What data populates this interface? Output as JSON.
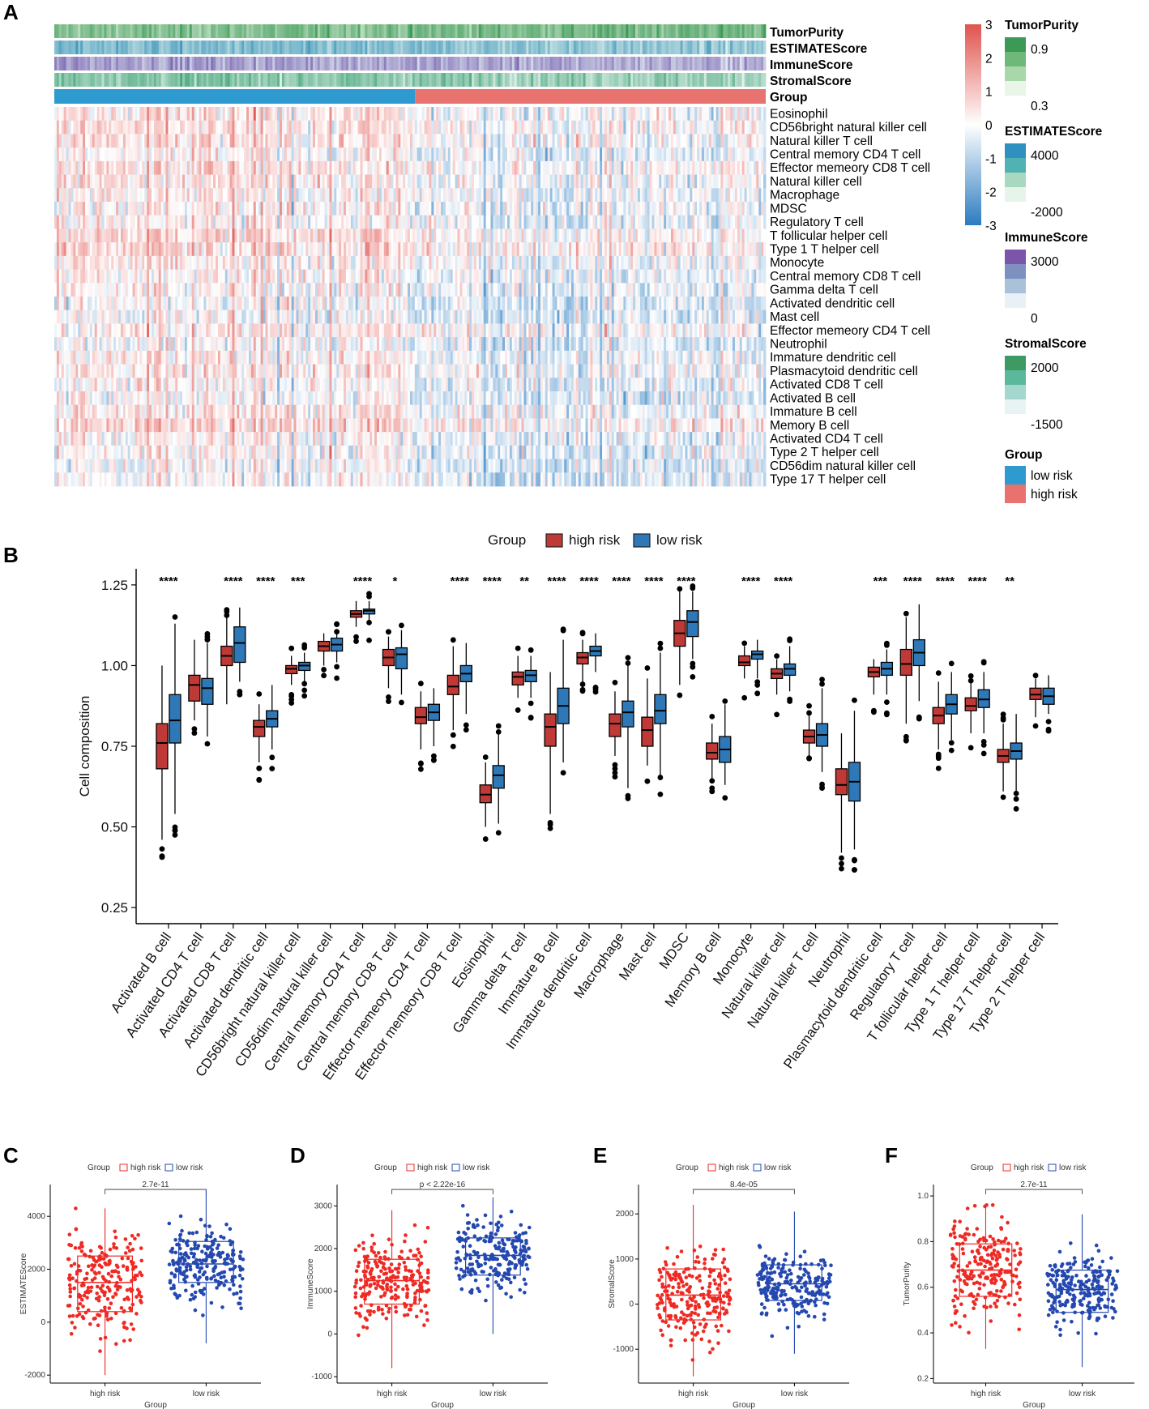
{
  "panels": {
    "A": "A",
    "B": "B",
    "C": "C",
    "D": "D",
    "E": "E",
    "F": "F"
  },
  "colors": {
    "high_risk": "#E8736E",
    "low_risk": "#2E9AD0",
    "box_high": "#BF3A36",
    "box_low": "#2F78B8",
    "dot_high": "#EE2A24",
    "dot_low": "#2448B0"
  },
  "chart_data": [
    {
      "type": "heatmap",
      "panel": "A",
      "title": "",
      "annotation_tracks": [
        "TumorPurity",
        "ESTIMATEScore",
        "ImmuneScore",
        "StromalScore",
        "Group"
      ],
      "rows": [
        "Eosinophil",
        "CD56bright natural killer cell",
        "Natural killer T cell",
        "Central memory CD4 T cell",
        "Effector memeory CD8 T cell",
        "Natural killer cell",
        "Macrophage",
        "MDSC",
        "Regulatory T cell",
        "T follicular helper cell",
        "Type 1 T helper cell",
        "Monocyte",
        "Central memory CD8 T cell",
        "Gamma delta T cell",
        "Activated dendritic cell",
        "Mast cell",
        "Effector memeory CD4 T cell",
        "Neutrophil",
        "Immature dendritic cell",
        "Plasmacytoid dendritic cell",
        "Activated CD8 T cell",
        "Activated B cell",
        "Immature  B cell",
        "Memory B cell",
        "Activated CD4 T cell",
        "Type 2 T helper cell",
        "CD56dim natural killer cell",
        "Type 17 T helper cell"
      ],
      "color_scale": {
        "min": -3,
        "max": 3,
        "ticks": [
          "3",
          "2",
          "1",
          "0",
          "-1",
          "-2",
          "-3"
        ]
      },
      "legends": [
        {
          "title": "TumorPurity",
          "high": "0.9",
          "low": "0.3"
        },
        {
          "title": "ESTIMATEScore",
          "high": "4000",
          "low": "-2000"
        },
        {
          "title": "ImmuneScore",
          "high": "3000",
          "low": "0"
        },
        {
          "title": "StromalScore",
          "high": "2000",
          "low": "-1500"
        }
      ],
      "group_legend": {
        "title": "Group",
        "items": [
          "low risk",
          "high risk"
        ]
      }
    },
    {
      "type": "box",
      "panel": "B",
      "ylabel": "Cell composition",
      "ylim": [
        0.2,
        1.3
      ],
      "yticks": [
        "0.25",
        "0.50",
        "0.75",
        "1.00",
        "1.25"
      ],
      "legend": {
        "title": "Group",
        "items": [
          "high risk",
          "low risk"
        ]
      },
      "categories": [
        "Activated B cell",
        "Activated CD4 T cell",
        "Activated CD8 T cell",
        "Activated dendritic cell",
        "CD56bright natural killer cell",
        "CD56dim natural killer cell",
        "Central memory CD4 T cell",
        "Central memory CD8 T cell",
        "Effector memeory CD4 T cell",
        "Effector memeory CD8 T cell",
        "Eosinophil",
        "Gamma delta T cell",
        "Immature  B cell",
        "Immature dendritic cell",
        "Macrophage",
        "Mast cell",
        "MDSC",
        "Memory B cell",
        "Monocyte",
        "Natural killer cell",
        "Natural killer T cell",
        "Neutrophil",
        "Plasmacytoid dendritic cell",
        "Regulatory T cell",
        "T follicular helper cell",
        "Type 1 T helper cell",
        "Type 17 T helper cell",
        "Type 2 T helper cell"
      ],
      "significance": [
        "****",
        "",
        "****",
        "****",
        "***",
        "",
        "****",
        "*",
        "",
        "****",
        "****",
        "**",
        "****",
        "****",
        "****",
        "****",
        "****",
        "",
        "****",
        "****",
        "",
        "",
        "***",
        "****",
        "****",
        "****",
        "**",
        ""
      ],
      "series": [
        {
          "name": "high risk",
          "stats": [
            [
              0.46,
              0.68,
              0.76,
              0.82,
              1.0
            ],
            [
              0.83,
              0.89,
              0.94,
              0.97,
              1.08
            ],
            [
              0.88,
              1.0,
              1.03,
              1.06,
              1.15
            ],
            [
              0.7,
              0.78,
              0.81,
              0.83,
              0.88
            ],
            [
              0.94,
              0.975,
              0.99,
              1.0,
              1.03
            ],
            [
              1.0,
              1.045,
              1.06,
              1.075,
              1.1
            ],
            [
              1.12,
              1.15,
              1.16,
              1.17,
              1.2
            ],
            [
              0.93,
              1.0,
              1.025,
              1.05,
              1.09
            ],
            [
              0.74,
              0.82,
              0.84,
              0.87,
              0.92
            ],
            [
              0.8,
              0.91,
              0.935,
              0.97,
              1.06
            ],
            [
              0.5,
              0.575,
              0.6,
              0.63,
              0.7
            ],
            [
              0.9,
              0.94,
              0.965,
              0.98,
              1.03
            ],
            [
              0.54,
              0.75,
              0.81,
              0.85,
              0.98
            ],
            [
              0.95,
              1.005,
              1.025,
              1.04,
              1.08
            ],
            [
              0.72,
              0.78,
              0.82,
              0.85,
              0.92
            ],
            [
              0.69,
              0.75,
              0.8,
              0.84,
              0.96
            ],
            [
              0.94,
              1.06,
              1.1,
              1.14,
              1.23
            ],
            [
              0.65,
              0.71,
              0.73,
              0.76,
              0.82
            ],
            [
              0.96,
              1.0,
              1.01,
              1.03,
              1.06
            ],
            [
              0.91,
              0.96,
              0.975,
              0.99,
              1.02
            ],
            [
              0.72,
              0.76,
              0.78,
              0.8,
              0.85
            ],
            [
              0.42,
              0.6,
              0.63,
              0.68,
              0.79
            ],
            [
              0.91,
              0.965,
              0.98,
              0.995,
              1.02
            ],
            [
              0.82,
              0.97,
              1.005,
              1.05,
              1.15
            ],
            [
              0.74,
              0.82,
              0.845,
              0.87,
              0.95
            ],
            [
              0.79,
              0.86,
              0.875,
              0.9,
              0.95
            ],
            [
              0.61,
              0.7,
              0.72,
              0.74,
              0.82
            ],
            [
              0.84,
              0.895,
              0.91,
              0.93,
              0.96
            ]
          ]
        },
        {
          "name": "low risk",
          "stats": [
            [
              0.54,
              0.76,
              0.83,
              0.91,
              1.13
            ],
            [
              0.78,
              0.88,
              0.93,
              0.96,
              1.07
            ],
            [
              0.95,
              1.01,
              1.07,
              1.12,
              1.18
            ],
            [
              0.74,
              0.81,
              0.835,
              0.86,
              0.94
            ],
            [
              0.95,
              0.985,
              1.0,
              1.01,
              1.04
            ],
            [
              1.01,
              1.045,
              1.065,
              1.085,
              1.1
            ],
            [
              1.14,
              1.16,
              1.17,
              1.175,
              1.2
            ],
            [
              0.91,
              0.99,
              1.035,
              1.055,
              1.11
            ],
            [
              0.75,
              0.83,
              0.855,
              0.88,
              0.93
            ],
            [
              0.85,
              0.95,
              0.975,
              1.0,
              1.07
            ],
            [
              0.51,
              0.62,
              0.66,
              0.69,
              0.79
            ],
            [
              0.9,
              0.95,
              0.97,
              0.985,
              1.03
            ],
            [
              0.7,
              0.82,
              0.875,
              0.93,
              1.08
            ],
            [
              0.98,
              1.03,
              1.045,
              1.06,
              1.1
            ],
            [
              0.62,
              0.81,
              0.855,
              0.89,
              1.0
            ],
            [
              0.66,
              0.82,
              0.86,
              0.91,
              1.04
            ],
            [
              1.02,
              1.09,
              1.135,
              1.17,
              1.23
            ],
            [
              0.63,
              0.7,
              0.74,
              0.78,
              0.88
            ],
            [
              0.96,
              1.02,
              1.035,
              1.045,
              1.08
            ],
            [
              0.92,
              0.97,
              0.99,
              1.005,
              1.06
            ],
            [
              0.67,
              0.75,
              0.785,
              0.82,
              0.93
            ],
            [
              0.43,
              0.58,
              0.64,
              0.7,
              0.86
            ],
            [
              0.91,
              0.97,
              0.99,
              1.01,
              1.05
            ],
            [
              0.89,
              1.0,
              1.04,
              1.08,
              1.19
            ],
            [
              0.77,
              0.85,
              0.88,
              0.91,
              0.98
            ],
            [
              0.79,
              0.87,
              0.895,
              0.925,
              0.98
            ],
            [
              0.61,
              0.71,
              0.735,
              0.76,
              0.85
            ],
            [
              0.85,
              0.88,
              0.905,
              0.93,
              0.97
            ]
          ]
        }
      ]
    },
    {
      "type": "box-scatter",
      "panel": "C",
      "ylabel": "ESTIMATEScore",
      "xlabel": "Group",
      "categories": [
        "high risk",
        "low risk"
      ],
      "pvalue": "2.7e-11",
      "yticks": [
        "-2000",
        "0",
        "2000",
        "4000"
      ],
      "ylim": [
        -2300,
        5200
      ],
      "legend": {
        "title": "Group",
        "items": [
          "high risk",
          "low risk"
        ]
      },
      "series": [
        {
          "name": "high risk",
          "q1": 400,
          "median": 1500,
          "q3": 2500,
          "whisker_low": -2000,
          "whisker_high": 4300
        },
        {
          "name": "low risk",
          "q1": 1500,
          "median": 2200,
          "q3": 3050,
          "whisker_low": -800,
          "whisker_high": 5000
        }
      ]
    },
    {
      "type": "box-scatter",
      "panel": "D",
      "ylabel": "ImmuneScore",
      "xlabel": "Group",
      "categories": [
        "high risk",
        "low risk"
      ],
      "pvalue": "p < 2.22e-16",
      "yticks": [
        "-1000",
        "0",
        "1000",
        "2000",
        "3000"
      ],
      "ylim": [
        -1150,
        3500
      ],
      "legend": {
        "title": "Group",
        "items": [
          "high risk",
          "low risk"
        ]
      },
      "series": [
        {
          "name": "high risk",
          "q1": 700,
          "median": 1250,
          "q3": 1750,
          "whisker_low": -800,
          "whisker_high": 2900
        },
        {
          "name": "low risk",
          "q1": 1380,
          "median": 1840,
          "q3": 2250,
          "whisker_low": 0,
          "whisker_high": 3200
        }
      ]
    },
    {
      "type": "box-scatter",
      "panel": "E",
      "ylabel": "StromalScore",
      "xlabel": "Group",
      "categories": [
        "high risk",
        "low risk"
      ],
      "pvalue": "8.4e-05",
      "yticks": [
        "-1000",
        "0",
        "1000",
        "2000"
      ],
      "ylim": [
        -1750,
        2650
      ],
      "legend": {
        "title": "Group",
        "items": [
          "high risk",
          "low risk"
        ]
      },
      "series": [
        {
          "name": "high risk",
          "q1": -350,
          "median": 200,
          "q3": 780,
          "whisker_low": -1600,
          "whisker_high": 2200
        },
        {
          "name": "low risk",
          "q1": 80,
          "median": 450,
          "q3": 870,
          "whisker_low": -1100,
          "whisker_high": 2050
        }
      ]
    },
    {
      "type": "box-scatter",
      "panel": "F",
      "ylabel": "TumorPurity",
      "xlabel": "Group",
      "categories": [
        "high risk",
        "low risk"
      ],
      "pvalue": "2.7e-11",
      "yticks": [
        "0.2",
        "0.4",
        "0.6",
        "0.8",
        "1.0"
      ],
      "ylim": [
        0.18,
        1.05
      ],
      "legend": {
        "title": "Group",
        "items": [
          "high risk",
          "low risk"
        ]
      },
      "series": [
        {
          "name": "high risk",
          "q1": 0.56,
          "median": 0.675,
          "q3": 0.79,
          "whisker_low": 0.33,
          "whisker_high": 0.96
        },
        {
          "name": "low risk",
          "q1": 0.49,
          "median": 0.59,
          "q3": 0.675,
          "whisker_low": 0.25,
          "whisker_high": 0.92
        }
      ]
    }
  ]
}
